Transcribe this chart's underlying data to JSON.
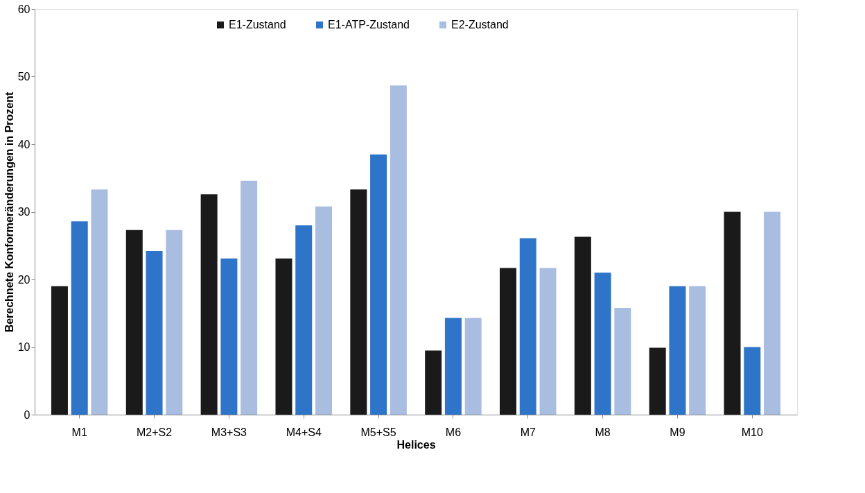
{
  "chart_data": {
    "type": "bar",
    "xlabel": "Helices",
    "ylabel": "Berechnete Konformeränderungen in Prozent",
    "categories": [
      "M1",
      "M2+S2",
      "M3+S3",
      "M4+S4",
      "M5+S5",
      "M6",
      "M7",
      "M8",
      "M9",
      "M10"
    ],
    "series": [
      {
        "name": "E1-Zustand",
        "color": "#1a1a1a",
        "values": [
          19.0,
          27.3,
          32.6,
          23.1,
          33.3,
          9.5,
          21.7,
          26.3,
          9.9,
          30.0
        ]
      },
      {
        "name": "E1-ATP-Zustand",
        "color": "#2e75c9",
        "values": [
          28.6,
          24.2,
          23.1,
          28.0,
          38.5,
          14.3,
          26.1,
          21.0,
          19.0,
          10.0
        ]
      },
      {
        "name": "E2-Zustand",
        "color": "#a9bde0",
        "values": [
          33.3,
          27.3,
          34.6,
          30.8,
          48.7,
          14.3,
          21.7,
          15.8,
          19.0,
          30.0
        ]
      }
    ],
    "ylim": [
      0,
      60
    ],
    "yticks": [
      0,
      10,
      20,
      30,
      40,
      50,
      60
    ],
    "grid": false,
    "legend": "top"
  }
}
